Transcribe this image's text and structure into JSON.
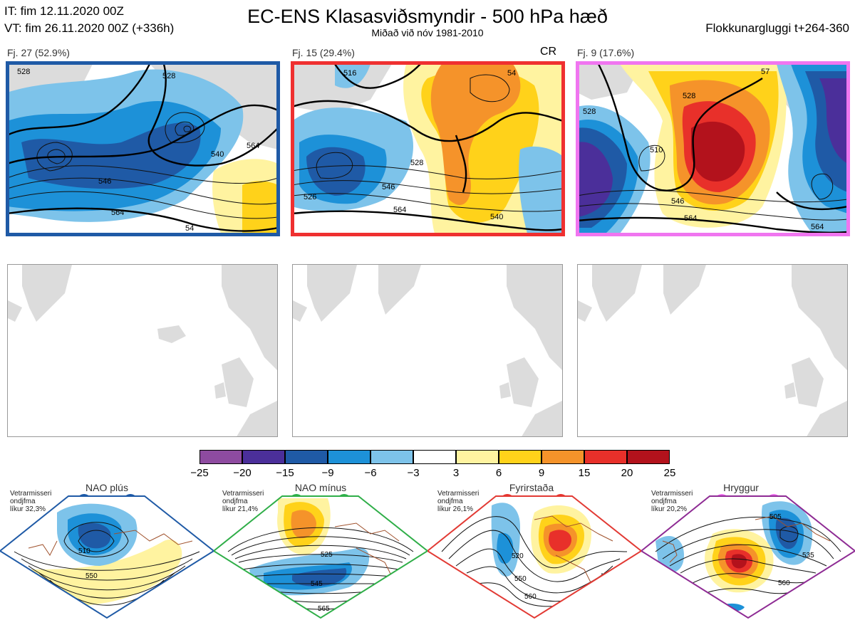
{
  "header": {
    "it_line": "IT: fim 12.11.2020 00Z",
    "vt_line": "VT: fim 26.11.2020 00Z  (+336h)",
    "title": "EC-ENS Klasasviðsmyndir - 500 hPa hæð",
    "subtitle": "Miðað við nóv 1981-2010",
    "window": "Flokkunargluggi t+264-360"
  },
  "clusters": [
    {
      "label": "Fj. 27 (52.9%)",
      "frame_color": "#1f5aa6",
      "contours": [
        "528",
        "528",
        "540",
        "546",
        "564",
        "564",
        "54"
      ]
    },
    {
      "label": "Fj. 15 (29.4%)",
      "frame_color": "#ef3030",
      "tag": "CR",
      "contours": [
        "528",
        "546",
        "564",
        "540",
        "526",
        "54",
        "516"
      ]
    },
    {
      "label": "Fj. 9 (17.6%)",
      "frame_color": "#f075f0",
      "contours": [
        "528",
        "510",
        "528",
        "546",
        "564",
        "564",
        "57"
      ]
    }
  ],
  "colorbar": {
    "ticks": [
      "−25",
      "−20",
      "−15",
      "−9",
      "−6",
      "−3",
      "3",
      "6",
      "9",
      "15",
      "20",
      "25"
    ],
    "colors": [
      "#8e4ba0",
      "#4b2f9a",
      "#1f5aa6",
      "#1d91d8",
      "#7dc3ea",
      "#ffffff",
      "#fff3a0",
      "#ffd21a",
      "#f5932a",
      "#e8302a",
      "#b3121c"
    ]
  },
  "regimes": [
    {
      "name": "NAO plús",
      "text": [
        "Vetrarmisseri",
        "ondjfma",
        "líkur 32,3%"
      ],
      "dot_color": "#1857a8",
      "frame_color": "#1f5aa6",
      "contours": [
        "510",
        "550"
      ]
    },
    {
      "name": "NAO mínus",
      "text": [
        "Vetrarmisseri",
        "ondjfma",
        "líkur 21,4%"
      ],
      "dot_color": "#2cb04a",
      "frame_color": "#2fae48",
      "contours": [
        "525",
        "545",
        "565"
      ]
    },
    {
      "name": "Fyrirstaða",
      "text": [
        "Vetrarmisseri",
        "ondjfma",
        "líkur 26,1%"
      ],
      "dot_color": "#e8302a",
      "frame_color": "#e23a34",
      "contours": [
        "520",
        "550",
        "560"
      ]
    },
    {
      "name": "Hryggur",
      "text": [
        "Vetrarmisseri",
        "ondjfma",
        "líkur 20,2%"
      ],
      "dot_color": "#ee6eee",
      "frame_color": "#8e2b94",
      "contours": [
        "505",
        "535",
        "560"
      ]
    }
  ]
}
